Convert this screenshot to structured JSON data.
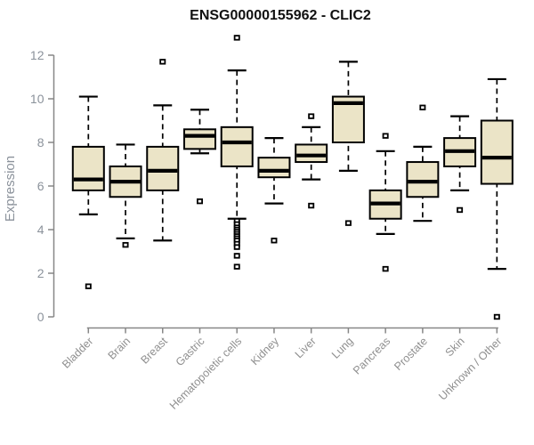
{
  "title": "ENSG00000155962 - CLIC2",
  "chart_data": {
    "type": "box",
    "title": "ENSG00000155962 - CLIC2",
    "xlabel": "",
    "ylabel": "Expression",
    "ylim": [
      0,
      12
    ],
    "yticks": [
      0,
      2,
      4,
      6,
      8,
      10,
      12
    ],
    "grid": false,
    "legend": "none",
    "colors": {
      "box_fill": "#EBE4C7",
      "box_stroke": "#000000",
      "median": "#000000",
      "whisker": "#000000",
      "axis_line": "#878787",
      "y_label_color": "#8B929B",
      "x_label_color": "#8F8F8F",
      "title_color": "#111111",
      "background": "#FFFFFF"
    },
    "categories": [
      "Bladder",
      "Brain",
      "Breast",
      "Gastric",
      "Hematopoietic cells",
      "Kidney",
      "Liver",
      "Lung",
      "Pancreas",
      "Prostate",
      "Skin",
      "Unknown / Other"
    ],
    "series": [
      {
        "category": "Bladder",
        "low": 4.7,
        "q1": 5.8,
        "median": 6.3,
        "q3": 7.8,
        "high": 10.1,
        "outliers": [
          1.4
        ]
      },
      {
        "category": "Brain",
        "low": 3.6,
        "q1": 5.5,
        "median": 6.2,
        "q3": 6.9,
        "high": 7.9,
        "outliers": [
          3.3
        ]
      },
      {
        "category": "Breast",
        "low": 3.5,
        "q1": 5.8,
        "median": 6.7,
        "q3": 7.8,
        "high": 9.7,
        "outliers": [
          11.7
        ]
      },
      {
        "category": "Gastric",
        "low": 7.5,
        "q1": 7.7,
        "median": 8.3,
        "q3": 8.6,
        "high": 9.5,
        "outliers": [
          5.3
        ]
      },
      {
        "category": "Hematopoietic cells",
        "low": 4.5,
        "q1": 6.9,
        "median": 8.0,
        "q3": 8.7,
        "high": 11.3,
        "outliers": [
          12.8,
          4.4,
          4.25,
          4.1,
          4.0,
          3.9,
          3.8,
          3.7,
          3.6,
          3.5,
          3.35,
          3.2,
          2.8,
          2.3
        ]
      },
      {
        "category": "Kidney",
        "low": 5.2,
        "q1": 6.4,
        "median": 6.7,
        "q3": 7.3,
        "high": 8.2,
        "outliers": [
          3.5
        ]
      },
      {
        "category": "Liver",
        "low": 6.3,
        "q1": 7.1,
        "median": 7.4,
        "q3": 7.9,
        "high": 8.7,
        "outliers": [
          9.2,
          5.1
        ]
      },
      {
        "category": "Lung",
        "low": 6.7,
        "q1": 8.0,
        "median": 9.8,
        "q3": 10.1,
        "high": 11.7,
        "outliers": [
          4.3
        ]
      },
      {
        "category": "Pancreas",
        "low": 3.8,
        "q1": 4.5,
        "median": 5.2,
        "q3": 5.8,
        "high": 7.6,
        "outliers": [
          8.3,
          2.2
        ]
      },
      {
        "category": "Prostate",
        "low": 4.4,
        "q1": 5.5,
        "median": 6.2,
        "q3": 7.1,
        "high": 7.8,
        "outliers": [
          9.6
        ]
      },
      {
        "category": "Skin",
        "low": 5.8,
        "q1": 6.9,
        "median": 7.6,
        "q3": 8.2,
        "high": 9.2,
        "outliers": [
          4.9
        ]
      },
      {
        "category": "Unknown / Other",
        "low": 2.2,
        "q1": 6.1,
        "median": 7.3,
        "q3": 9.0,
        "high": 10.9,
        "outliers": [
          0.0
        ]
      }
    ]
  }
}
